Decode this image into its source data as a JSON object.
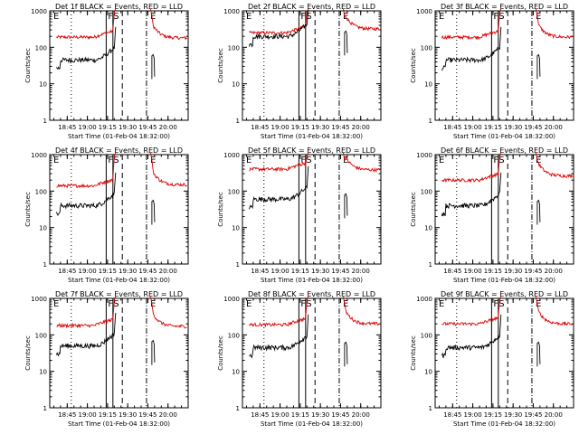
{
  "chart_data": {
    "type": "line",
    "layout": "3x3 grid of panels",
    "ylabel": "Counts/sec",
    "xlabel": "Start Time (01-Feb-04 18:32:00)",
    "y_scale": "log",
    "ylim": [
      1,
      1000
    ],
    "ytick_labels": [
      "1",
      "10",
      "100",
      "1000"
    ],
    "xlim": [
      "18:32",
      "20:15"
    ],
    "xtick_labels": [
      "18:45",
      "19:00",
      "19:15",
      "19:30",
      "19:45",
      "20:00"
    ],
    "grid": false,
    "legend": "none",
    "marker_letters": [
      "E",
      "F",
      "S",
      "E"
    ],
    "series_colors": {
      "events": "#000000",
      "lld": "#e00000"
    },
    "panels": [
      {
        "title": "Det 1f BLACK = Events, RED = LLD",
        "lld_base": 190,
        "lld_post": 180,
        "events_base": 45
      },
      {
        "title": "Det 2f BLACK = Events, RED = LLD",
        "lld_base": 250,
        "lld_post": 320,
        "events_base": 200
      },
      {
        "title": "Det 3f BLACK = Events, RED = LLD",
        "lld_base": 190,
        "lld_post": 190,
        "events_base": 45
      },
      {
        "title": "Det 4f BLACK = Events, RED = LLD",
        "lld_base": 140,
        "lld_post": 150,
        "events_base": 40
      },
      {
        "title": "Det 5f BLACK = Events, RED = LLD",
        "lld_base": 400,
        "lld_post": 380,
        "events_base": 60
      },
      {
        "title": "Det 6f BLACK = Events, RED = LLD",
        "lld_base": 200,
        "lld_post": 260,
        "events_base": 40
      },
      {
        "title": "Det 7f BLACK = Events, RED = LLD",
        "lld_base": 180,
        "lld_post": 170,
        "events_base": 50
      },
      {
        "title": "Det 8f BLACK = Events, RED = LLD",
        "lld_base": 190,
        "lld_post": 200,
        "events_base": 45
      },
      {
        "title": "Det 9f BLACK = Events, RED = LLD",
        "lld_base": 200,
        "lld_post": 200,
        "events_base": 45
      }
    ]
  }
}
